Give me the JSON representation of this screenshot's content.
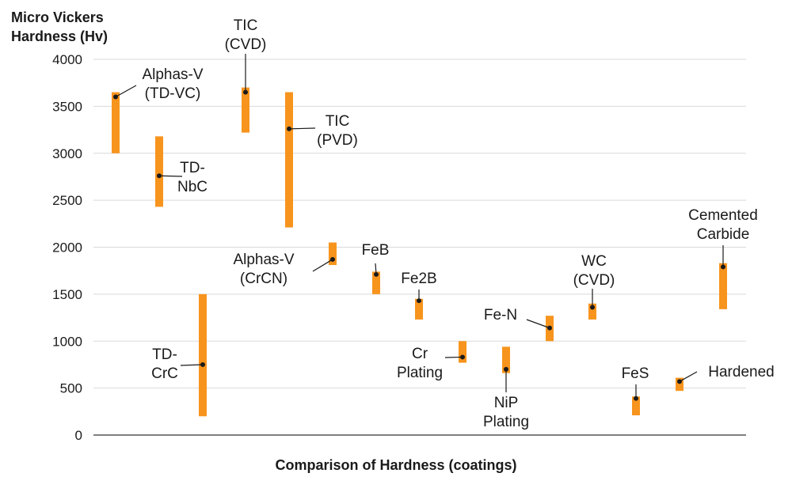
{
  "chart_data": {
    "type": "range-bar",
    "title": "",
    "ylabel": "Micro Vickers Hardness (Hv)",
    "xlabel": "Comparison of Hardness (coatings)",
    "ylim": [
      0,
      4000
    ],
    "yticks": [
      0,
      500,
      1000,
      1500,
      2000,
      2500,
      3000,
      3500,
      4000
    ],
    "grid": true,
    "bar_color": "#F7941D",
    "series": [
      {
        "label": "Alphas-V (TD-VC)",
        "lines": [
          "Alphas-V",
          "(TD-VC)"
        ],
        "min": 3000,
        "max": 3650,
        "point": 3600
      },
      {
        "label": "TD-NbC",
        "lines": [
          "TD-",
          "NbC"
        ],
        "min": 2430,
        "max": 3180,
        "point": 2760
      },
      {
        "label": "TD-CrC",
        "lines": [
          "TD-",
          "CrC"
        ],
        "min": 200,
        "max": 1500,
        "point": 750
      },
      {
        "label": "TIC (CVD)",
        "lines": [
          "TIC",
          "(CVD)"
        ],
        "min": 3220,
        "max": 3700,
        "point": 3650
      },
      {
        "label": "TIC (PVD)",
        "lines": [
          "TIC",
          "(PVD)"
        ],
        "min": 2210,
        "max": 3650,
        "point": 3260
      },
      {
        "label": "Alphas-V (CrCN)",
        "lines": [
          "Alphas-V",
          "(CrCN)"
        ],
        "min": 1810,
        "max": 2050,
        "point": 1870
      },
      {
        "label": "FeB",
        "lines": [
          "FeB"
        ],
        "min": 1500,
        "max": 1740,
        "point": 1710
      },
      {
        "label": "Fe2B",
        "lines": [
          "Fe2B"
        ],
        "min": 1230,
        "max": 1450,
        "point": 1430
      },
      {
        "label": "Cr Plating",
        "lines": [
          "Cr",
          "Plating"
        ],
        "min": 770,
        "max": 1000,
        "point": 830
      },
      {
        "label": "NiP Plating",
        "lines": [
          "NiP",
          "Plating"
        ],
        "min": 660,
        "max": 940,
        "point": 700
      },
      {
        "label": "Fe-N",
        "lines": [
          "Fe-N"
        ],
        "min": 1000,
        "max": 1270,
        "point": 1140
      },
      {
        "label": "WC (CVD)",
        "lines": [
          "WC",
          "(CVD)"
        ],
        "min": 1230,
        "max": 1400,
        "point": 1360
      },
      {
        "label": "FeS",
        "lines": [
          "FeS"
        ],
        "min": 210,
        "max": 410,
        "point": 390
      },
      {
        "label": "Hardened",
        "lines": [
          "Hardened"
        ],
        "min": 470,
        "max": 610,
        "point": 570
      },
      {
        "label": "Cemented Carbide",
        "lines": [
          "Cemented",
          "Carbide"
        ],
        "min": 1340,
        "max": 1830,
        "point": 1790
      }
    ]
  }
}
